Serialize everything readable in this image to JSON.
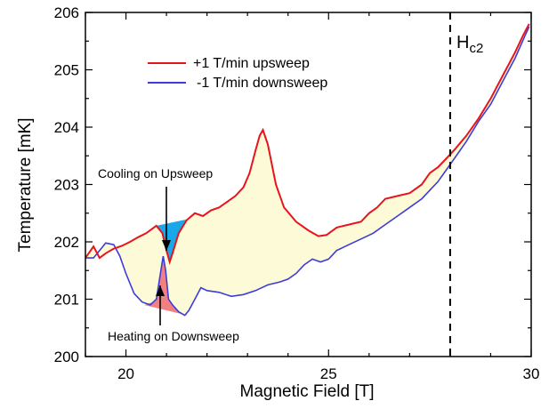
{
  "chart_data": {
    "type": "line",
    "xlabel": "Magnetic Field [T]",
    "ylabel": "Temperature [mK]",
    "xlim": [
      19,
      30
    ],
    "ylim": [
      200,
      206
    ],
    "x_ticks": [
      20,
      25,
      30
    ],
    "y_ticks": [
      200,
      201,
      202,
      203,
      204,
      205,
      206
    ],
    "grid": false,
    "legend_position": "top-left",
    "series": [
      {
        "name": "+1 T/min upsweep",
        "color": "#e8141c",
        "points": [
          [
            19.0,
            201.72
          ],
          [
            19.2,
            201.92
          ],
          [
            19.35,
            201.72
          ],
          [
            19.5,
            201.8
          ],
          [
            19.7,
            201.88
          ],
          [
            19.9,
            201.93
          ],
          [
            20.1,
            202.0
          ],
          [
            20.3,
            202.08
          ],
          [
            20.5,
            202.15
          ],
          [
            20.75,
            202.28
          ],
          [
            20.9,
            202.15
          ],
          [
            21.0,
            201.85
          ],
          [
            21.08,
            201.65
          ],
          [
            21.15,
            201.8
          ],
          [
            21.3,
            202.15
          ],
          [
            21.5,
            202.38
          ],
          [
            21.7,
            202.5
          ],
          [
            21.9,
            202.45
          ],
          [
            22.1,
            202.55
          ],
          [
            22.3,
            202.6
          ],
          [
            22.5,
            202.7
          ],
          [
            22.7,
            202.8
          ],
          [
            22.9,
            202.95
          ],
          [
            23.05,
            203.2
          ],
          [
            23.2,
            203.6
          ],
          [
            23.3,
            203.85
          ],
          [
            23.38,
            203.95
          ],
          [
            23.5,
            203.7
          ],
          [
            23.7,
            203.0
          ],
          [
            23.9,
            202.6
          ],
          [
            24.2,
            202.35
          ],
          [
            24.5,
            202.2
          ],
          [
            24.75,
            202.1
          ],
          [
            24.95,
            202.12
          ],
          [
            25.2,
            202.25
          ],
          [
            25.5,
            202.3
          ],
          [
            25.8,
            202.35
          ],
          [
            26.0,
            202.5
          ],
          [
            26.2,
            202.6
          ],
          [
            26.4,
            202.75
          ],
          [
            26.7,
            202.8
          ],
          [
            27.0,
            202.85
          ],
          [
            27.3,
            203.0
          ],
          [
            27.5,
            203.2
          ],
          [
            27.7,
            203.3
          ],
          [
            27.9,
            203.45
          ],
          [
            28.1,
            203.6
          ],
          [
            28.4,
            203.85
          ],
          [
            28.7,
            204.15
          ],
          [
            29.0,
            204.5
          ],
          [
            29.3,
            204.9
          ],
          [
            29.6,
            205.3
          ],
          [
            29.8,
            205.6
          ],
          [
            29.95,
            205.8
          ]
        ]
      },
      {
        "name": "-1 T/min downsweep",
        "color": "#3c3cdc",
        "points": [
          [
            19.0,
            201.72
          ],
          [
            19.2,
            201.72
          ],
          [
            19.35,
            201.85
          ],
          [
            19.5,
            201.98
          ],
          [
            19.7,
            201.95
          ],
          [
            19.85,
            201.75
          ],
          [
            20.0,
            201.45
          ],
          [
            20.2,
            201.1
          ],
          [
            20.4,
            200.95
          ],
          [
            20.6,
            200.9
          ],
          [
            20.75,
            201.0
          ],
          [
            20.85,
            201.45
          ],
          [
            20.92,
            201.75
          ],
          [
            20.98,
            201.5
          ],
          [
            21.05,
            201.0
          ],
          [
            21.15,
            200.9
          ],
          [
            21.3,
            200.78
          ],
          [
            21.45,
            200.72
          ],
          [
            21.55,
            200.8
          ],
          [
            21.7,
            201.0
          ],
          [
            21.85,
            201.2
          ],
          [
            22.0,
            201.15
          ],
          [
            22.3,
            201.12
          ],
          [
            22.6,
            201.05
          ],
          [
            22.9,
            201.08
          ],
          [
            23.2,
            201.15
          ],
          [
            23.5,
            201.25
          ],
          [
            23.8,
            201.3
          ],
          [
            24.0,
            201.35
          ],
          [
            24.2,
            201.45
          ],
          [
            24.4,
            201.6
          ],
          [
            24.6,
            201.7
          ],
          [
            24.8,
            201.65
          ],
          [
            25.0,
            201.7
          ],
          [
            25.2,
            201.85
          ],
          [
            25.5,
            201.95
          ],
          [
            25.8,
            202.05
          ],
          [
            26.1,
            202.15
          ],
          [
            26.4,
            202.3
          ],
          [
            26.7,
            202.45
          ],
          [
            27.0,
            202.6
          ],
          [
            27.3,
            202.75
          ],
          [
            27.5,
            202.9
          ],
          [
            27.7,
            203.05
          ],
          [
            27.9,
            203.25
          ],
          [
            28.1,
            203.45
          ],
          [
            28.4,
            203.75
          ],
          [
            28.7,
            204.1
          ],
          [
            29.0,
            204.4
          ],
          [
            29.3,
            204.8
          ],
          [
            29.6,
            205.2
          ],
          [
            29.85,
            205.6
          ],
          [
            29.95,
            205.75
          ]
        ]
      }
    ],
    "marker_line": {
      "x": 28.0,
      "label": "H",
      "label_sub": "c2",
      "style": "dashed"
    },
    "annotations": [
      {
        "text": "Cooling on Upsweep",
        "fill": "#1aa7e8"
      },
      {
        "text": "Heating on Downsweep",
        "fill": "#f28080"
      }
    ],
    "between_fill": "#fdfbd7"
  }
}
